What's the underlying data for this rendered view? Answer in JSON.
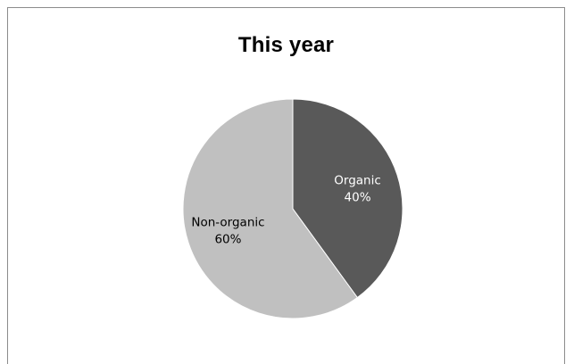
{
  "chart_data": {
    "type": "pie",
    "title": "This year",
    "slices": [
      {
        "label": "Organic",
        "value": 40,
        "percent_label": "40%",
        "color": "#595959",
        "label_color": "#ffffff"
      },
      {
        "label": "Non-organic",
        "value": 60,
        "percent_label": "60%",
        "color": "#c0c0c0",
        "label_color": "#000000"
      }
    ],
    "start_angle_deg": 0,
    "direction": "clockwise"
  }
}
